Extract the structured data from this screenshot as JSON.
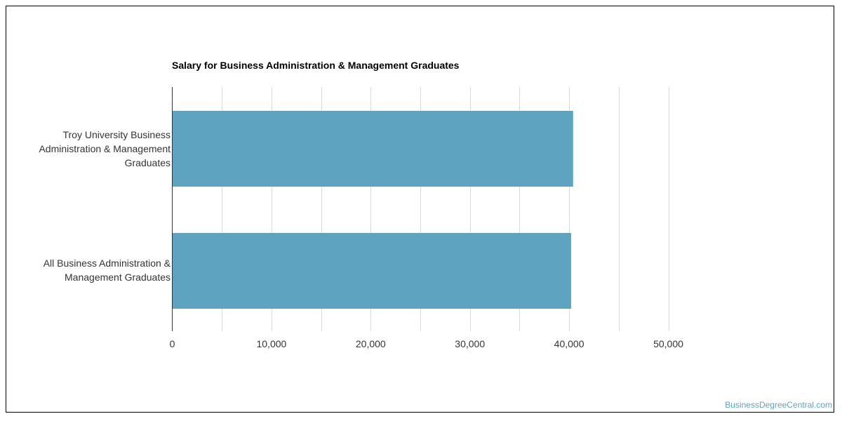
{
  "chart_data": {
    "type": "bar",
    "orientation": "horizontal",
    "title": "Salary for Business Administration & Management Graduates",
    "categories": [
      "Troy University Business Administration & Management Graduates",
      "All Business Administration & Management Graduates"
    ],
    "values": [
      40400,
      40200
    ],
    "xlim": [
      0,
      50000
    ],
    "xticks": [
      0,
      10000,
      20000,
      30000,
      40000,
      50000
    ],
    "xtick_labels": [
      "0",
      "10,000",
      "20,000",
      "30,000",
      "40,000",
      "50,000"
    ],
    "xlabel": "",
    "ylabel": "",
    "grid": true,
    "bar_color": "#5ea3c0",
    "grid_color": "#d9d9d9"
  },
  "watermark": "BusinessDegreeCentral.com"
}
